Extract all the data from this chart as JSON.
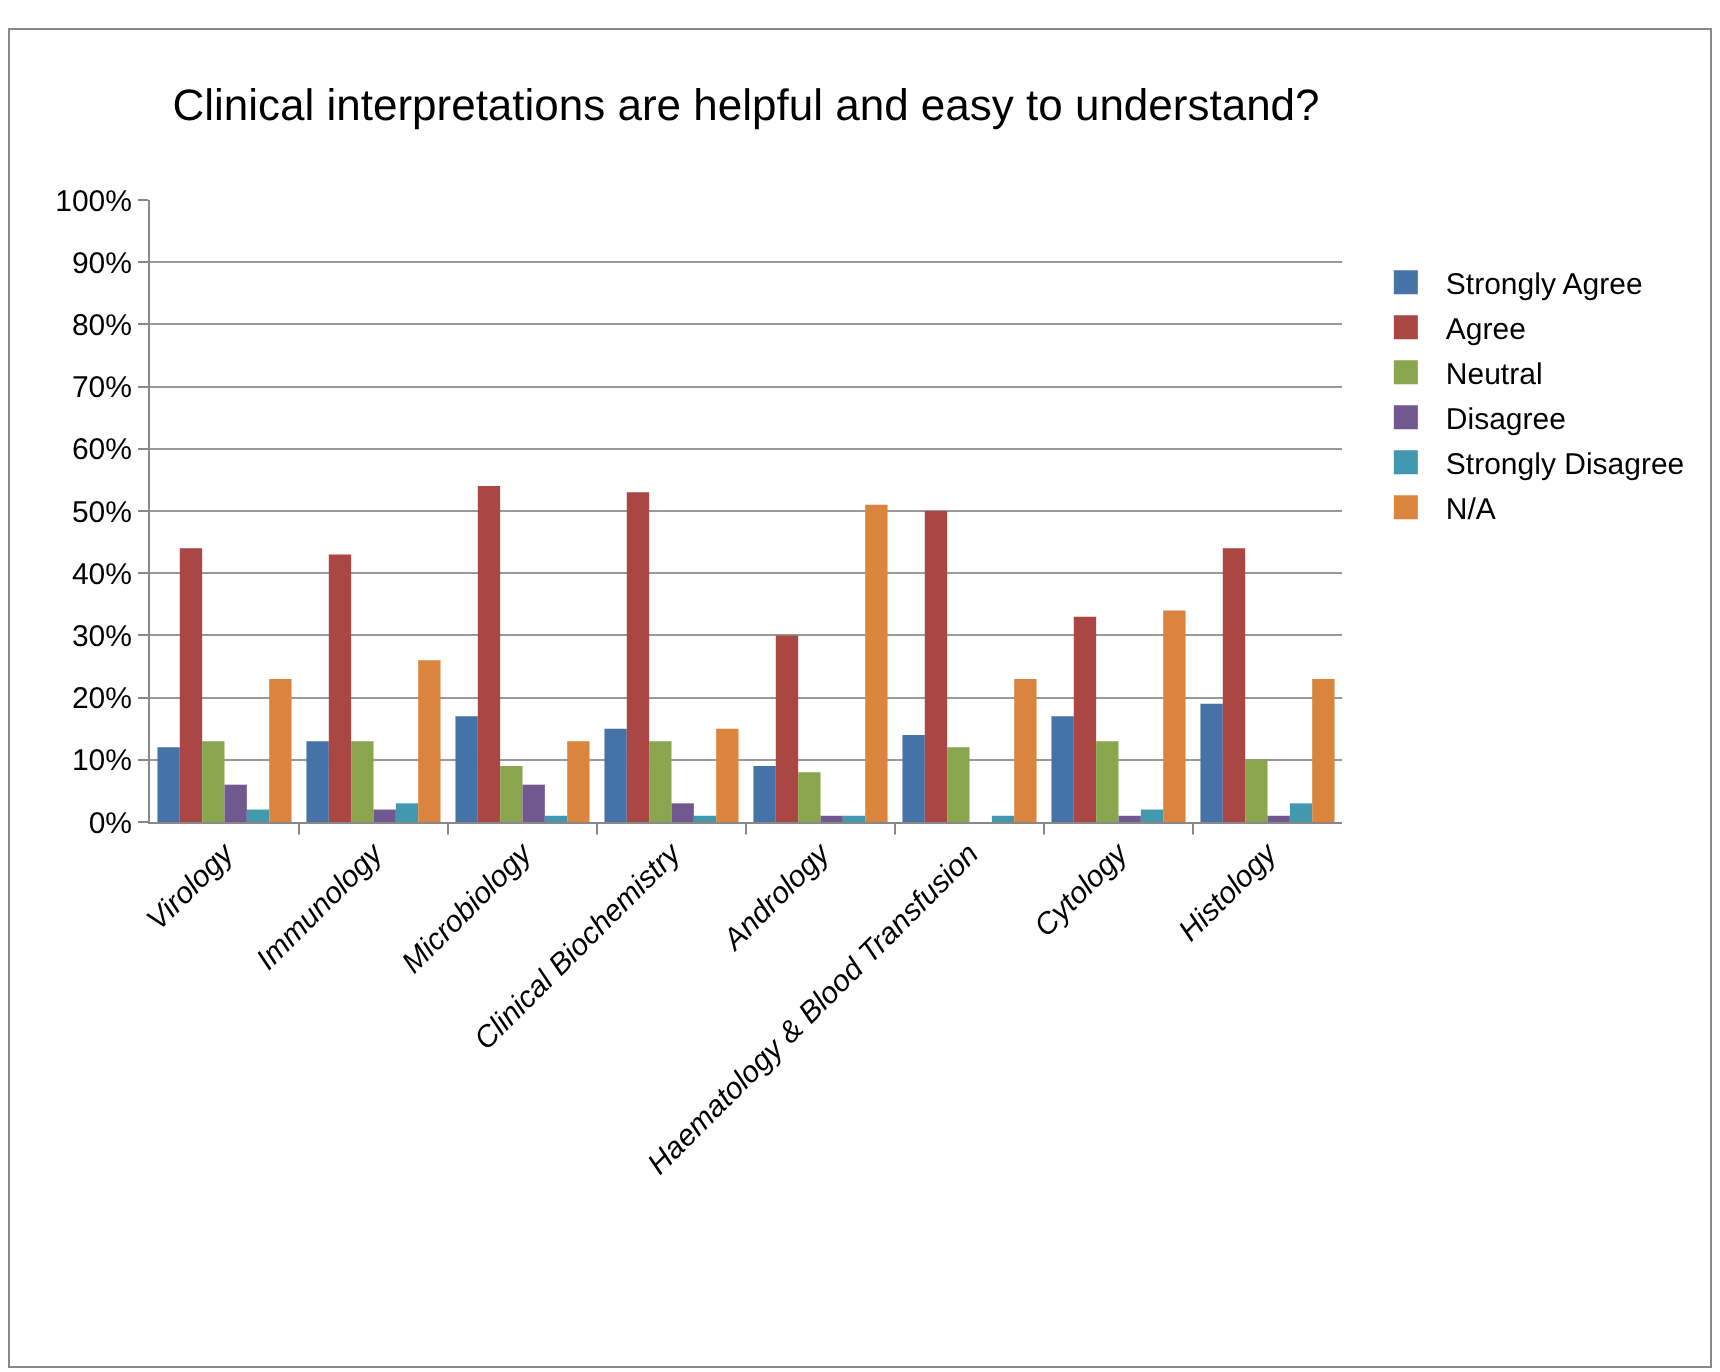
{
  "chart_data": {
    "type": "bar",
    "title": "Clinical interpretations are helpful and easy to understand?",
    "categories": [
      "Virology",
      "Immunology",
      "Microbiology",
      "Clinical Biochemistry",
      "Andrology",
      "Haematology & Blood Transfusion",
      "Cytology",
      "Histology"
    ],
    "series": [
      {
        "name": "Strongly Agree",
        "color": "#4572a7",
        "values": [
          12,
          13,
          17,
          15,
          9,
          14,
          17,
          19
        ]
      },
      {
        "name": "Agree",
        "color": "#aa4643",
        "values": [
          44,
          43,
          54,
          53,
          30,
          50,
          33,
          44
        ]
      },
      {
        "name": "Neutral",
        "color": "#89a54e",
        "values": [
          13,
          13,
          9,
          13,
          8,
          12,
          13,
          10
        ]
      },
      {
        "name": "Disagree",
        "color": "#71588f",
        "values": [
          6,
          2,
          6,
          3,
          1,
          0,
          1,
          1
        ]
      },
      {
        "name": "Strongly Disagree",
        "color": "#4198af",
        "values": [
          2,
          3,
          1,
          1,
          1,
          1,
          2,
          3
        ]
      },
      {
        "name": "N/A",
        "color": "#db843d",
        "values": [
          23,
          26,
          13,
          15,
          51,
          23,
          34,
          23
        ]
      }
    ],
    "ylim": [
      0,
      100
    ],
    "yticks": [
      {
        "value": 0,
        "label": "0%"
      },
      {
        "value": 10,
        "label": "10%"
      },
      {
        "value": 20,
        "label": "20%"
      },
      {
        "value": 30,
        "label": "30%"
      },
      {
        "value": 40,
        "label": "40%"
      },
      {
        "value": 50,
        "label": "50%"
      },
      {
        "value": 60,
        "label": "60%"
      },
      {
        "value": 70,
        "label": "70%"
      },
      {
        "value": 80,
        "label": "80%"
      },
      {
        "value": 90,
        "label": "90%"
      },
      {
        "value": 100,
        "label": "100%"
      }
    ],
    "grid": "y",
    "legend": "right"
  }
}
